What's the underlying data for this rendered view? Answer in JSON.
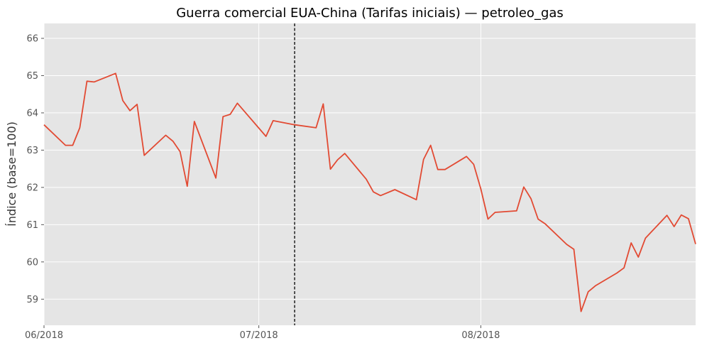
{
  "chart_data": {
    "type": "line",
    "title": "Guerra comercial EUA-China (Tarifas iniciais) — petroleo_gas",
    "xlabel": "",
    "ylabel": "Índice (base=100)",
    "ylim": [
      58.3,
      66.4
    ],
    "grid": true,
    "x_ticks": [
      {
        "date": "2018-06-01",
        "label": "06/2018"
      },
      {
        "date": "2018-07-01",
        "label": "07/2018"
      },
      {
        "date": "2018-08-01",
        "label": "08/2018"
      }
    ],
    "y_ticks": [
      59,
      60,
      61,
      62,
      63,
      64,
      65,
      66
    ],
    "event_line": {
      "date": "2018-07-06",
      "style": "dashed",
      "color": "#000000"
    },
    "series": [
      {
        "color": "#E24A33",
        "points": [
          [
            "2018-06-01",
            63.68
          ],
          [
            "2018-06-04",
            63.13
          ],
          [
            "2018-06-05",
            63.13
          ],
          [
            "2018-06-06",
            63.6
          ],
          [
            "2018-06-07",
            64.85
          ],
          [
            "2018-06-08",
            64.83
          ],
          [
            "2018-06-11",
            65.06
          ],
          [
            "2018-06-12",
            64.33
          ],
          [
            "2018-06-13",
            64.06
          ],
          [
            "2018-06-14",
            64.23
          ],
          [
            "2018-06-15",
            62.86
          ],
          [
            "2018-06-18",
            63.4
          ],
          [
            "2018-06-19",
            63.24
          ],
          [
            "2018-06-20",
            62.96
          ],
          [
            "2018-06-21",
            62.03
          ],
          [
            "2018-06-22",
            63.77
          ],
          [
            "2018-06-25",
            62.25
          ],
          [
            "2018-06-26",
            63.9
          ],
          [
            "2018-06-27",
            63.96
          ],
          [
            "2018-06-28",
            64.26
          ],
          [
            "2018-07-02",
            63.37
          ],
          [
            "2018-07-03",
            63.79
          ],
          [
            "2018-07-06",
            63.68
          ],
          [
            "2018-07-09",
            63.6
          ],
          [
            "2018-07-10",
            64.24
          ],
          [
            "2018-07-11",
            62.49
          ],
          [
            "2018-07-12",
            62.74
          ],
          [
            "2018-07-13",
            62.91
          ],
          [
            "2018-07-16",
            62.22
          ],
          [
            "2018-07-17",
            61.88
          ],
          [
            "2018-07-18",
            61.78
          ],
          [
            "2018-07-20",
            61.94
          ],
          [
            "2018-07-23",
            61.67
          ],
          [
            "2018-07-24",
            62.75
          ],
          [
            "2018-07-25",
            63.13
          ],
          [
            "2018-07-26",
            62.48
          ],
          [
            "2018-07-27",
            62.48
          ],
          [
            "2018-07-30",
            62.83
          ],
          [
            "2018-07-31",
            62.62
          ],
          [
            "2018-08-01",
            61.96
          ],
          [
            "2018-08-02",
            61.15
          ],
          [
            "2018-08-03",
            61.33
          ],
          [
            "2018-08-06",
            61.37
          ],
          [
            "2018-08-07",
            62.01
          ],
          [
            "2018-08-08",
            61.7
          ],
          [
            "2018-08-09",
            61.15
          ],
          [
            "2018-08-10",
            61.02
          ],
          [
            "2018-08-13",
            60.47
          ],
          [
            "2018-08-14",
            60.34
          ],
          [
            "2018-08-15",
            58.67
          ],
          [
            "2018-08-16",
            59.2
          ],
          [
            "2018-08-17",
            59.36
          ],
          [
            "2018-08-20",
            59.7
          ],
          [
            "2018-08-21",
            59.84
          ],
          [
            "2018-08-22",
            60.51
          ],
          [
            "2018-08-23",
            60.13
          ],
          [
            "2018-08-24",
            60.64
          ],
          [
            "2018-08-27",
            61.25
          ],
          [
            "2018-08-28",
            60.95
          ],
          [
            "2018-08-29",
            61.26
          ],
          [
            "2018-08-30",
            61.16
          ],
          [
            "2018-08-31",
            60.48
          ]
        ]
      }
    ]
  }
}
